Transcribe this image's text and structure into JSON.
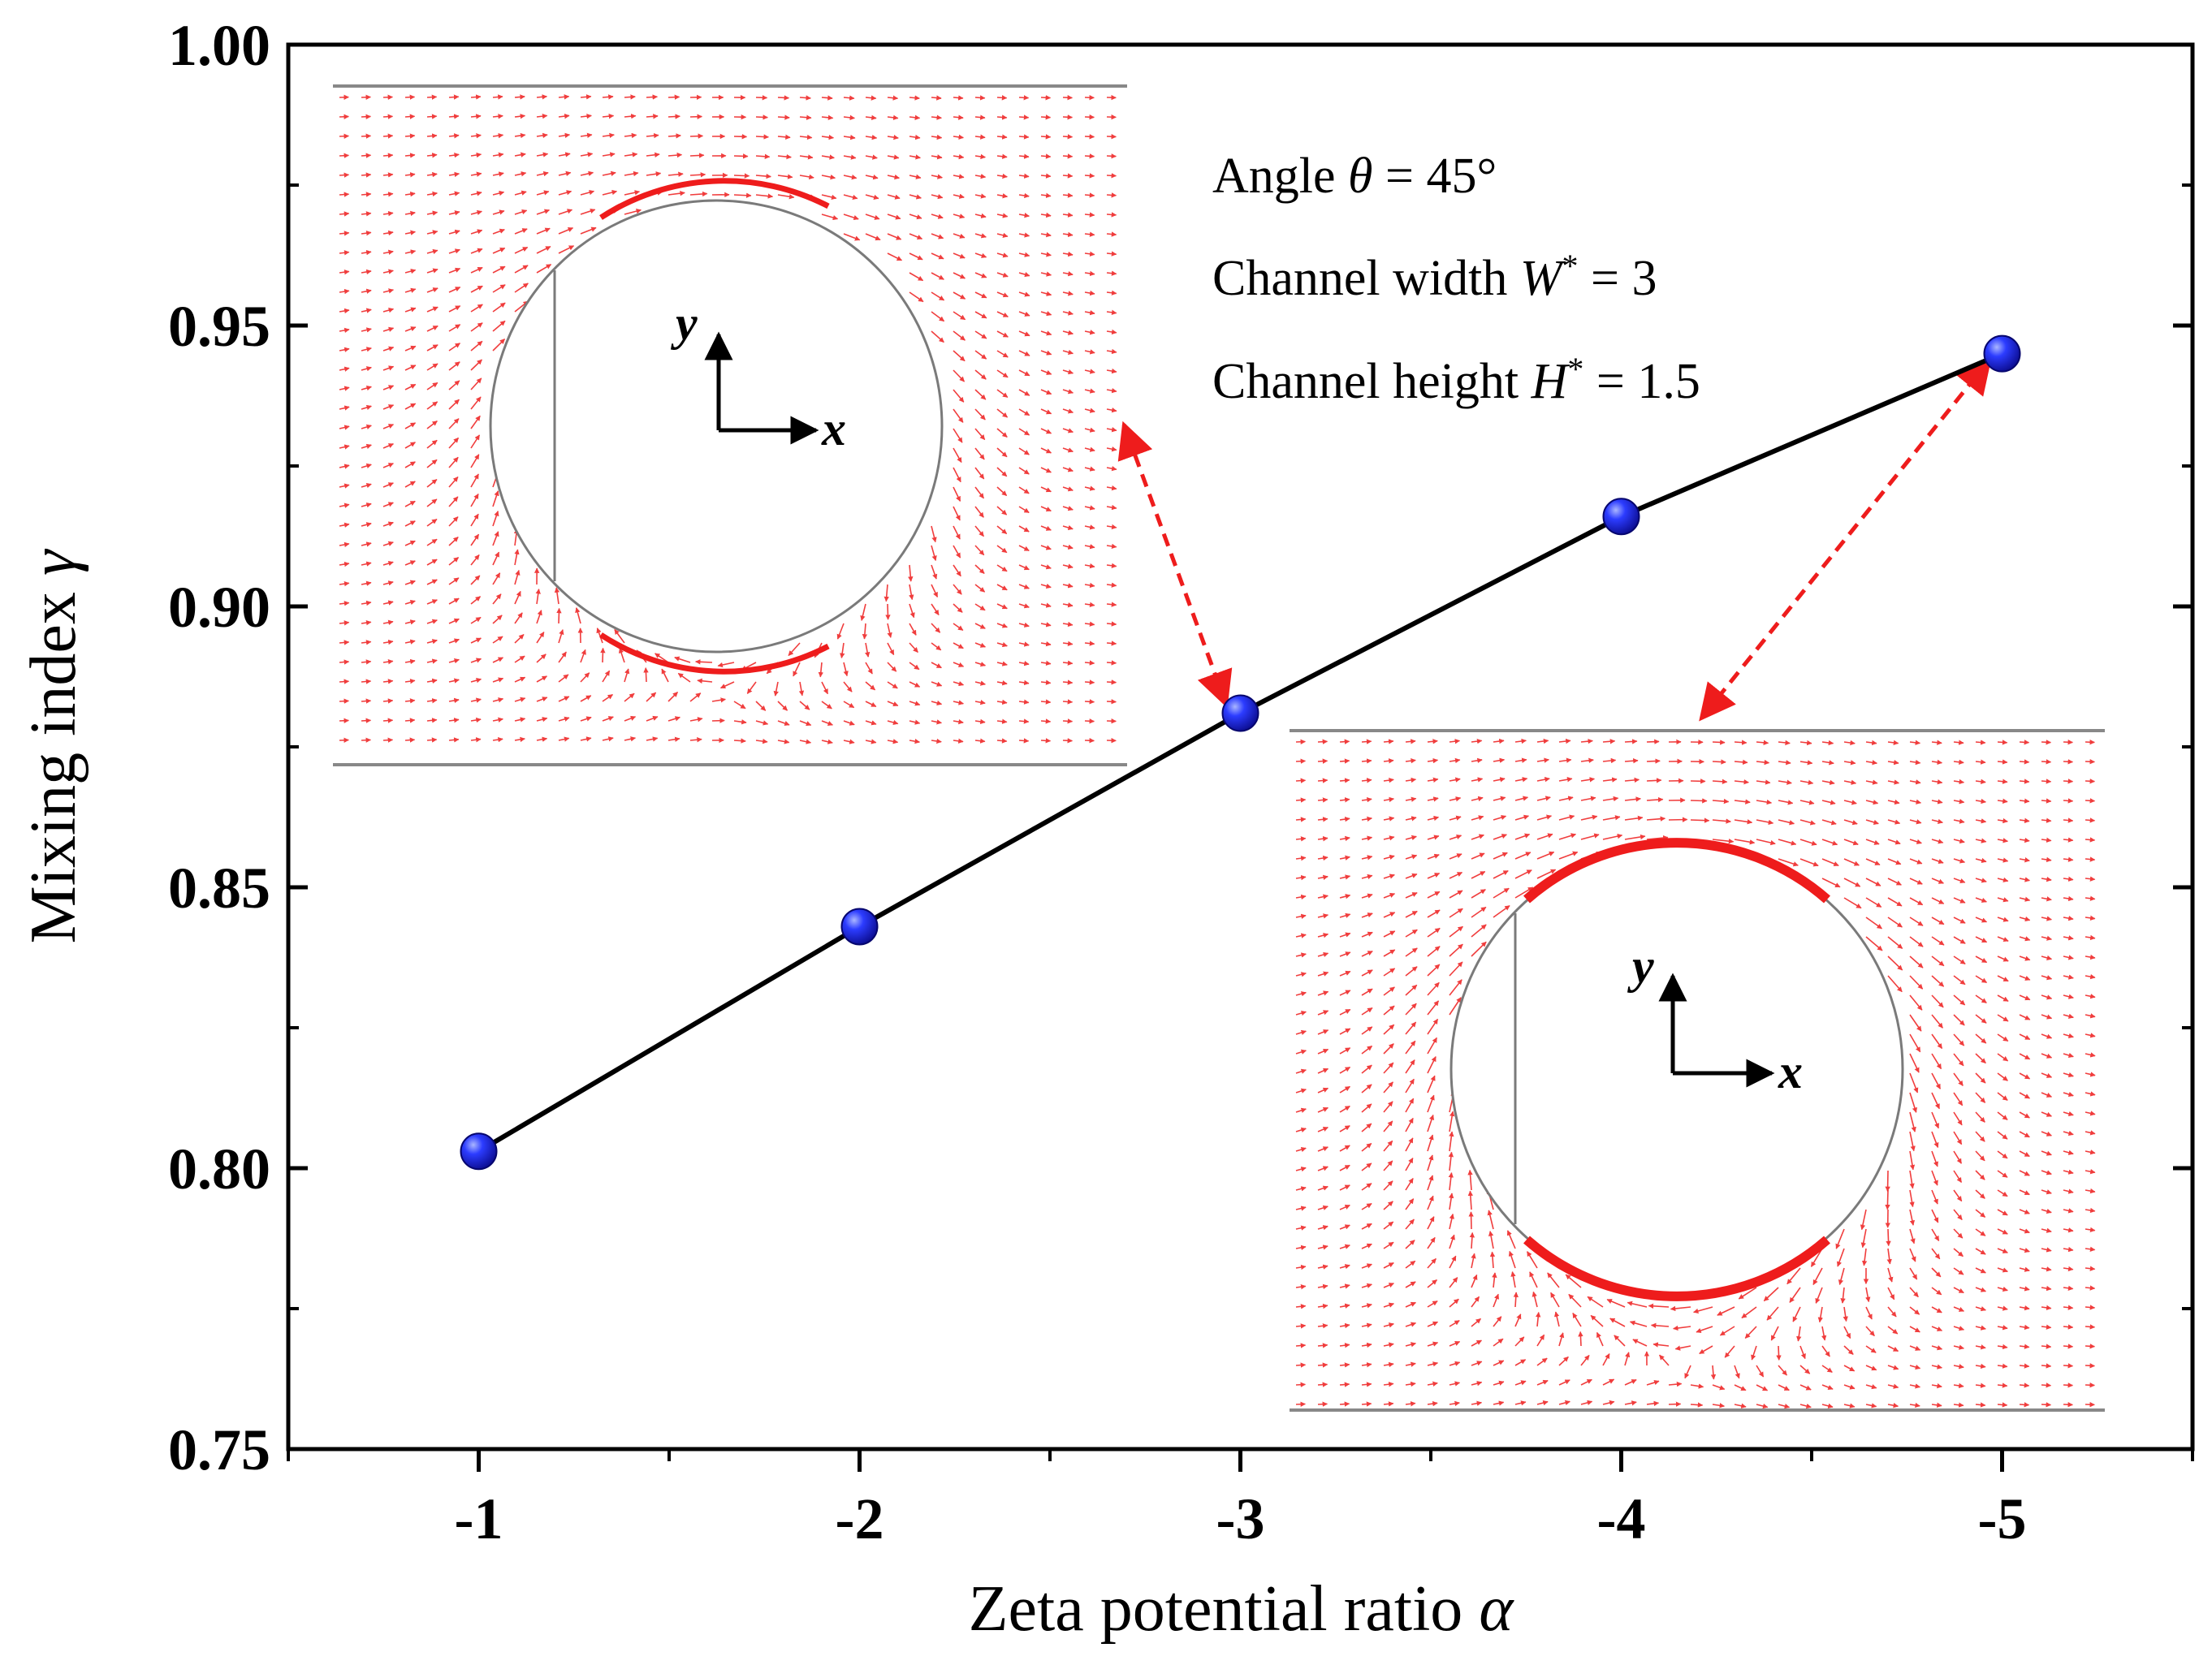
{
  "chart_data": {
    "type": "line",
    "title": "",
    "xlabel": "Zeta potential ratio",
    "xlabel_symbol": "α",
    "ylabel": "Mixing index",
    "ylabel_symbol": "γ",
    "x": [
      -1,
      -2,
      -3,
      -4,
      -5
    ],
    "x_tick_labels": [
      "-1",
      "-2",
      "-3",
      "-4",
      "-5"
    ],
    "xlim": [
      -0.5,
      -5.5
    ],
    "ylim": [
      0.75,
      1.0
    ],
    "y_ticks": [
      0.75,
      0.8,
      0.85,
      0.9,
      0.95,
      1.0
    ],
    "y_tick_labels": [
      "0.75",
      "0.80",
      "0.85",
      "0.90",
      "0.95",
      "1.00"
    ],
    "grid": false,
    "series": [
      {
        "name": "Mixing index",
        "values": [
          0.803,
          0.843,
          0.881,
          0.916,
          0.945
        ],
        "line_color": "#000000",
        "marker_color": "#1515e6"
      }
    ],
    "annotations": [
      {
        "label": "Angle",
        "symbol": "θ",
        "rest": " = 45°"
      },
      {
        "label": "Channel width",
        "symbol": "W",
        "sup": "*",
        "rest": " = 3"
      },
      {
        "label": "Channel height",
        "symbol": "H",
        "sup": "*",
        "rest": " = 1.5"
      }
    ],
    "insets": [
      {
        "name": "velocity field for alpha -3",
        "linked_x": -3,
        "axis_labels": [
          "x",
          "y"
        ],
        "vector_color": "#ee1c1c"
      },
      {
        "name": "velocity field for alpha -5",
        "linked_x": -5,
        "axis_labels": [
          "x",
          "y"
        ],
        "vector_color": "#ee1c1c"
      }
    ]
  }
}
